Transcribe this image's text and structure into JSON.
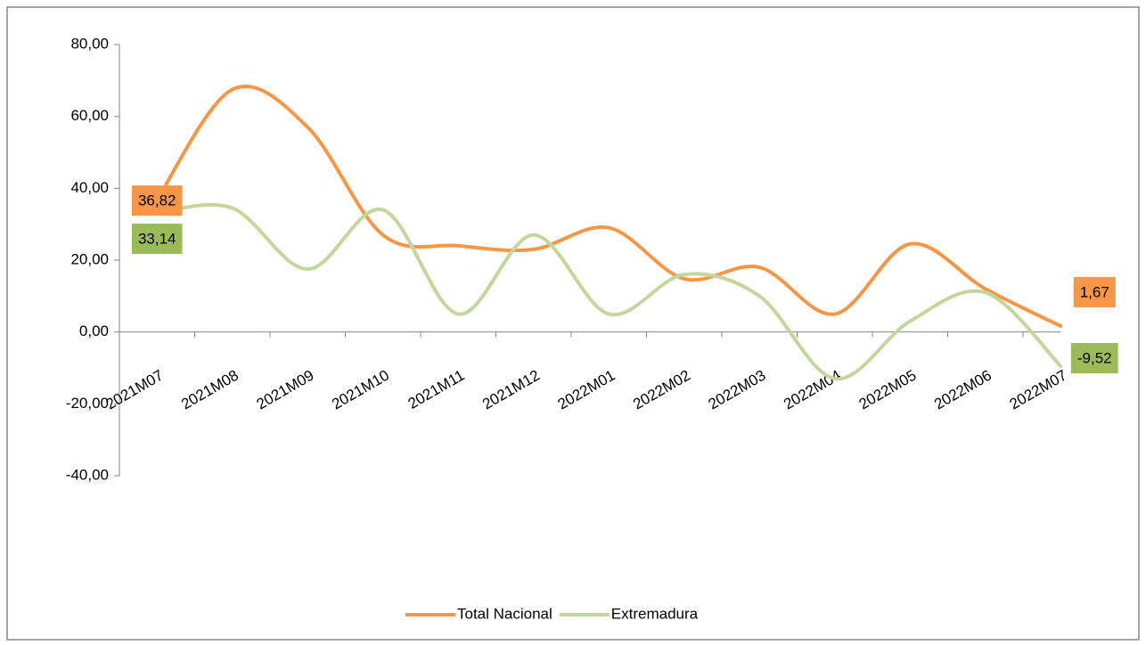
{
  "chart_data": {
    "type": "line",
    "categories": [
      "2021M07",
      "2021M08",
      "2021M09",
      "2021M10",
      "2021M11",
      "2021M12",
      "2022M01",
      "2022M02",
      "2022M03",
      "2022M04",
      "2022M05",
      "2022M06",
      "2022M07"
    ],
    "series": [
      {
        "name": "Total Nacional",
        "color": "#f79646",
        "values": [
          36.82,
          67.5,
          57,
          27,
          24,
          23,
          29,
          14.8,
          18,
          5,
          24.5,
          12,
          1.67
        ],
        "value_labels": [
          "36,82",
          null,
          null,
          null,
          null,
          null,
          null,
          null,
          null,
          null,
          null,
          null,
          "1,67"
        ]
      },
      {
        "name": "Extremadura",
        "color": "#c3d69b",
        "values": [
          33.14,
          34.5,
          17.5,
          34,
          5,
          27,
          5,
          16,
          10,
          -13,
          3,
          11,
          -9.52
        ],
        "value_labels": [
          "33,14",
          null,
          null,
          null,
          null,
          null,
          null,
          null,
          null,
          null,
          null,
          null,
          "-9,52"
        ]
      }
    ],
    "ylim": [
      -40,
      80
    ],
    "yticks": [
      {
        "value": -40,
        "label": "-40,00"
      },
      {
        "value": -20,
        "label": "-20,00"
      },
      {
        "value": 0,
        "label": "0,00"
      },
      {
        "value": 20,
        "label": "20,00"
      },
      {
        "value": 40,
        "label": "40,00"
      },
      {
        "value": 60,
        "label": "60,00"
      },
      {
        "value": 80,
        "label": "80,00"
      }
    ],
    "legend": "bottom",
    "grid": false
  }
}
